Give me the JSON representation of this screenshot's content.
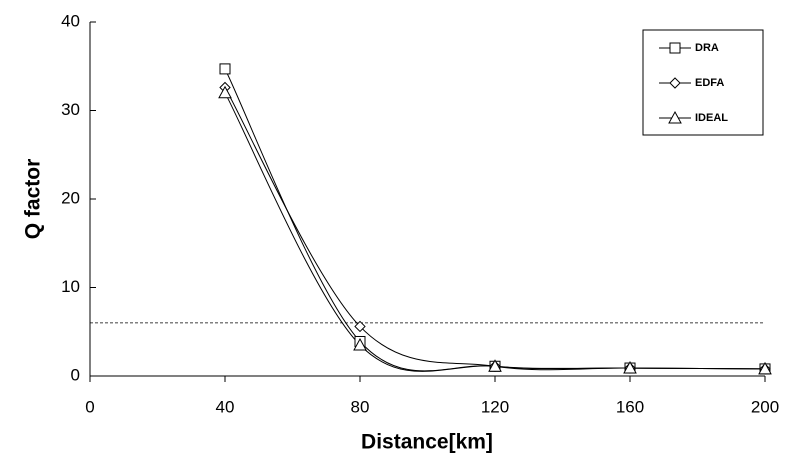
{
  "chart_data": {
    "type": "line",
    "x_label": "Distance[km]",
    "y_label": "Q factor",
    "x": [
      40,
      80,
      120,
      160,
      200
    ],
    "series": [
      {
        "name": "DRA",
        "color": "#000000",
        "marker": "square",
        "values": [
          34.7,
          3.9,
          1.1,
          0.9,
          0.8
        ]
      },
      {
        "name": "EDFA",
        "color": "#000000",
        "marker": "diamond",
        "values": [
          32.6,
          5.6,
          1.1,
          0.9,
          0.8
        ]
      },
      {
        "name": "IDEAL",
        "color": "#000000",
        "marker": "triangle",
        "values": [
          32.0,
          3.5,
          1.1,
          0.9,
          0.8
        ]
      }
    ],
    "xlim": [
      0,
      200
    ],
    "xticks": [
      0,
      40,
      80,
      120,
      160,
      200
    ],
    "ylim": [
      0,
      40
    ],
    "yticks": [
      0,
      10,
      20,
      30,
      40
    ],
    "threshold": 6,
    "legend": "top-right",
    "grid": false
  }
}
